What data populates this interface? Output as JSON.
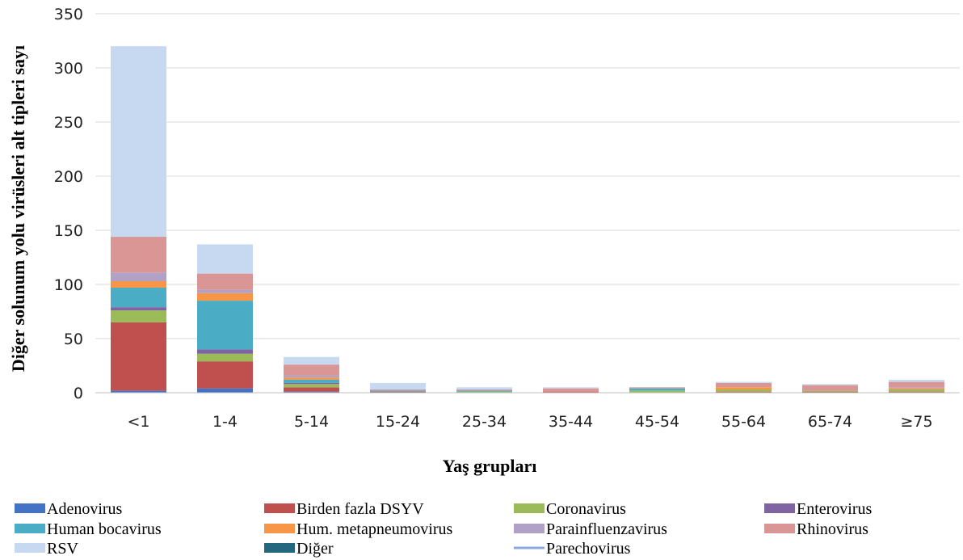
{
  "chart_data": {
    "type": "bar",
    "stacked": true,
    "title": "",
    "xlabel": "Yaş grupları",
    "ylabel": "Diğer solunum yolu virüsleri alt tipleri sayı",
    "ylim": [
      0,
      350
    ],
    "yticks": [
      0,
      50,
      100,
      150,
      200,
      250,
      300,
      350
    ],
    "grid": true,
    "legend_position": "bottom",
    "categories": [
      "<1",
      "1-4",
      "5-14",
      "15-24",
      "25-34",
      "35-44",
      "45-54",
      "55-64",
      "65-74",
      "≥75"
    ],
    "series": [
      {
        "name": "Adenovirus",
        "color": "#4472c4",
        "values": [
          2,
          4,
          1,
          0,
          0,
          0,
          0,
          0,
          0,
          0
        ]
      },
      {
        "name": "Birden fazla DSYV",
        "color": "#c0504d",
        "values": [
          63,
          25,
          4,
          1,
          0,
          1,
          0,
          1,
          1,
          1
        ]
      },
      {
        "name": "Coronavirus",
        "color": "#9bbb59",
        "values": [
          11,
          7,
          3,
          0,
          1,
          0,
          2,
          2,
          1,
          2
        ]
      },
      {
        "name": "Enterovirus",
        "color": "#8064a2",
        "values": [
          3,
          4,
          1,
          0,
          0,
          0,
          0,
          0,
          0,
          0
        ]
      },
      {
        "name": "Human bocavirus",
        "color": "#4bacc6",
        "values": [
          18,
          45,
          3,
          1,
          1,
          0,
          2,
          0,
          0,
          0
        ]
      },
      {
        "name": "Hum. metapneumovirus",
        "color": "#f79646",
        "values": [
          6,
          7,
          2,
          0,
          0,
          0,
          0,
          2,
          0,
          1
        ]
      },
      {
        "name": "Parainfluenzavirus",
        "color": "#b2a1c7",
        "values": [
          8,
          3,
          2,
          0,
          0,
          0,
          0,
          0,
          0,
          1
        ]
      },
      {
        "name": "Rhinovirus",
        "color": "#d99694",
        "values": [
          33,
          15,
          10,
          1,
          1,
          3,
          1,
          4,
          5,
          5
        ]
      },
      {
        "name": "RSV",
        "color": "#c6d9f1",
        "values": [
          176,
          27,
          7,
          6,
          2,
          1,
          0,
          1,
          1,
          2
        ]
      },
      {
        "name": "Diğer",
        "color": "#23687c",
        "values": [
          0,
          0,
          0,
          0,
          0,
          0,
          0,
          0,
          0,
          0
        ]
      },
      {
        "name": "Parechovirus",
        "color": "#8ea9db",
        "marker": "line",
        "values": [
          0,
          0,
          0,
          0,
          0,
          0,
          0,
          0,
          0,
          0
        ]
      }
    ]
  }
}
